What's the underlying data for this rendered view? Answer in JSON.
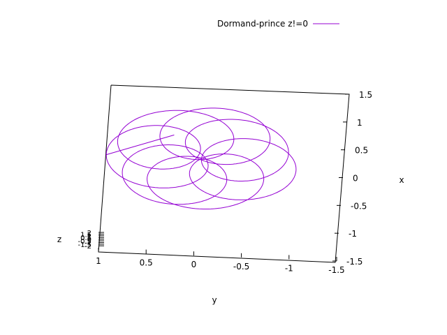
{
  "chart_data": {
    "type": "line",
    "title": "",
    "xlabel": "y",
    "ylabel": "x",
    "zlabel": "z",
    "projection": "3d-view-from-top",
    "grid": false,
    "legend_position": "top-right",
    "y_axis": {
      "range": [
        1,
        -1.5
      ],
      "ticks": [
        1,
        0.5,
        0,
        -0.5,
        -1,
        -1.5
      ],
      "tick_labels": [
        "1",
        "0.5",
        "0",
        "-0.5",
        "-1",
        "-1.5"
      ]
    },
    "x_axis": {
      "range": [
        -1.5,
        1.5
      ],
      "ticks": [
        1.5,
        1,
        0.5,
        0,
        -0.5,
        -1,
        -1.5
      ],
      "tick_labels": [
        "1.5",
        "1",
        "0.5",
        "0",
        "-0.5",
        "-1",
        "-1.5"
      ]
    },
    "z_axis": {
      "tick_labels": [
        "2",
        "1.5",
        "1",
        "0.5",
        "0",
        "-0.5",
        "-1",
        "-1.5",
        "-2"
      ]
    },
    "series": [
      {
        "name": "Dormand-prince z!=0",
        "color": "#9400d3",
        "curve": "rosette",
        "center_x": 0.25,
        "center_y": 0.0,
        "loop_radius": 0.55,
        "loop_offset": 0.5,
        "loops": 7,
        "start": {
          "x": 0.3,
          "y": 0.65
        }
      }
    ]
  }
}
